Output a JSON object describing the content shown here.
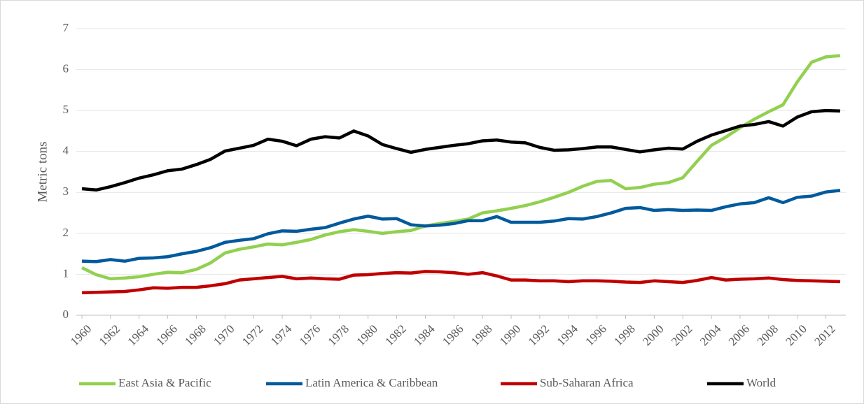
{
  "chart_data": {
    "type": "line",
    "y_label": "Metric tons",
    "x": [
      1960,
      1961,
      1962,
      1963,
      1964,
      1965,
      1966,
      1967,
      1968,
      1969,
      1970,
      1971,
      1972,
      1973,
      1974,
      1975,
      1976,
      1977,
      1978,
      1979,
      1980,
      1981,
      1982,
      1983,
      1984,
      1985,
      1986,
      1987,
      1988,
      1989,
      1990,
      1991,
      1992,
      1993,
      1994,
      1995,
      1996,
      1997,
      1998,
      1999,
      2000,
      2001,
      2002,
      2003,
      2004,
      2005,
      2006,
      2007,
      2008,
      2009,
      2010,
      2011,
      2012,
      2013
    ],
    "xlim": [
      1960,
      2013
    ],
    "xticks": [
      1960,
      1962,
      1964,
      1966,
      1968,
      1970,
      1972,
      1974,
      1976,
      1978,
      1980,
      1982,
      1984,
      1986,
      1988,
      1990,
      1992,
      1994,
      1996,
      1998,
      2000,
      2002,
      2004,
      2006,
      2008,
      2010,
      2012
    ],
    "ylim": [
      0,
      7
    ],
    "yticks": [
      0,
      1,
      2,
      3,
      4,
      5,
      6,
      7
    ],
    "grid": true,
    "legend": "bottom",
    "series": [
      {
        "name": "East Asia & Pacific",
        "color": "#92d050",
        "values": [
          1.16,
          0.99,
          0.89,
          0.91,
          0.94,
          1.0,
          1.05,
          1.04,
          1.12,
          1.28,
          1.52,
          1.61,
          1.67,
          1.74,
          1.72,
          1.78,
          1.85,
          1.96,
          2.04,
          2.09,
          2.05,
          2.0,
          2.04,
          2.07,
          2.18,
          2.24,
          2.29,
          2.35,
          2.5,
          2.55,
          2.61,
          2.68,
          2.77,
          2.88,
          3.0,
          3.15,
          3.27,
          3.29,
          3.09,
          3.12,
          3.2,
          3.24,
          3.36,
          3.76,
          4.15,
          4.35,
          4.58,
          4.79,
          4.97,
          5.14,
          5.7,
          6.18,
          6.31,
          6.34
        ]
      },
      {
        "name": "Latin America & Caribbean",
        "color": "#005a9c",
        "values": [
          1.32,
          1.31,
          1.36,
          1.32,
          1.39,
          1.4,
          1.43,
          1.5,
          1.56,
          1.65,
          1.78,
          1.83,
          1.87,
          1.99,
          2.06,
          2.05,
          2.1,
          2.14,
          2.25,
          2.35,
          2.42,
          2.35,
          2.36,
          2.21,
          2.18,
          2.2,
          2.24,
          2.31,
          2.31,
          2.41,
          2.27,
          2.27,
          2.27,
          2.3,
          2.36,
          2.35,
          2.41,
          2.5,
          2.61,
          2.63,
          2.56,
          2.58,
          2.56,
          2.57,
          2.56,
          2.65,
          2.72,
          2.75,
          2.87,
          2.75,
          2.88,
          2.91,
          3.01,
          3.05
        ]
      },
      {
        "name": "Sub-Saharan Africa",
        "color": "#c00000",
        "values": [
          0.55,
          0.56,
          0.57,
          0.58,
          0.62,
          0.67,
          0.66,
          0.68,
          0.68,
          0.72,
          0.77,
          0.86,
          0.89,
          0.92,
          0.95,
          0.89,
          0.91,
          0.89,
          0.88,
          0.98,
          0.99,
          1.02,
          1.04,
          1.03,
          1.07,
          1.06,
          1.04,
          1.0,
          1.04,
          0.96,
          0.86,
          0.86,
          0.84,
          0.84,
          0.82,
          0.84,
          0.84,
          0.83,
          0.81,
          0.8,
          0.84,
          0.82,
          0.8,
          0.85,
          0.92,
          0.86,
          0.88,
          0.89,
          0.91,
          0.87,
          0.85,
          0.84,
          0.83,
          0.82
        ]
      },
      {
        "name": "World",
        "color": "#000000",
        "values": [
          3.09,
          3.06,
          3.14,
          3.24,
          3.35,
          3.43,
          3.53,
          3.57,
          3.68,
          3.81,
          4.01,
          4.08,
          4.15,
          4.3,
          4.25,
          4.14,
          4.3,
          4.36,
          4.33,
          4.5,
          4.38,
          4.17,
          4.07,
          3.98,
          4.05,
          4.1,
          4.15,
          4.19,
          4.26,
          4.28,
          4.23,
          4.21,
          4.1,
          4.03,
          4.04,
          4.07,
          4.11,
          4.11,
          4.05,
          3.99,
          4.04,
          4.08,
          4.06,
          4.25,
          4.4,
          4.51,
          4.62,
          4.66,
          4.73,
          4.62,
          4.84,
          4.97,
          5.0,
          4.99
        ]
      }
    ]
  }
}
